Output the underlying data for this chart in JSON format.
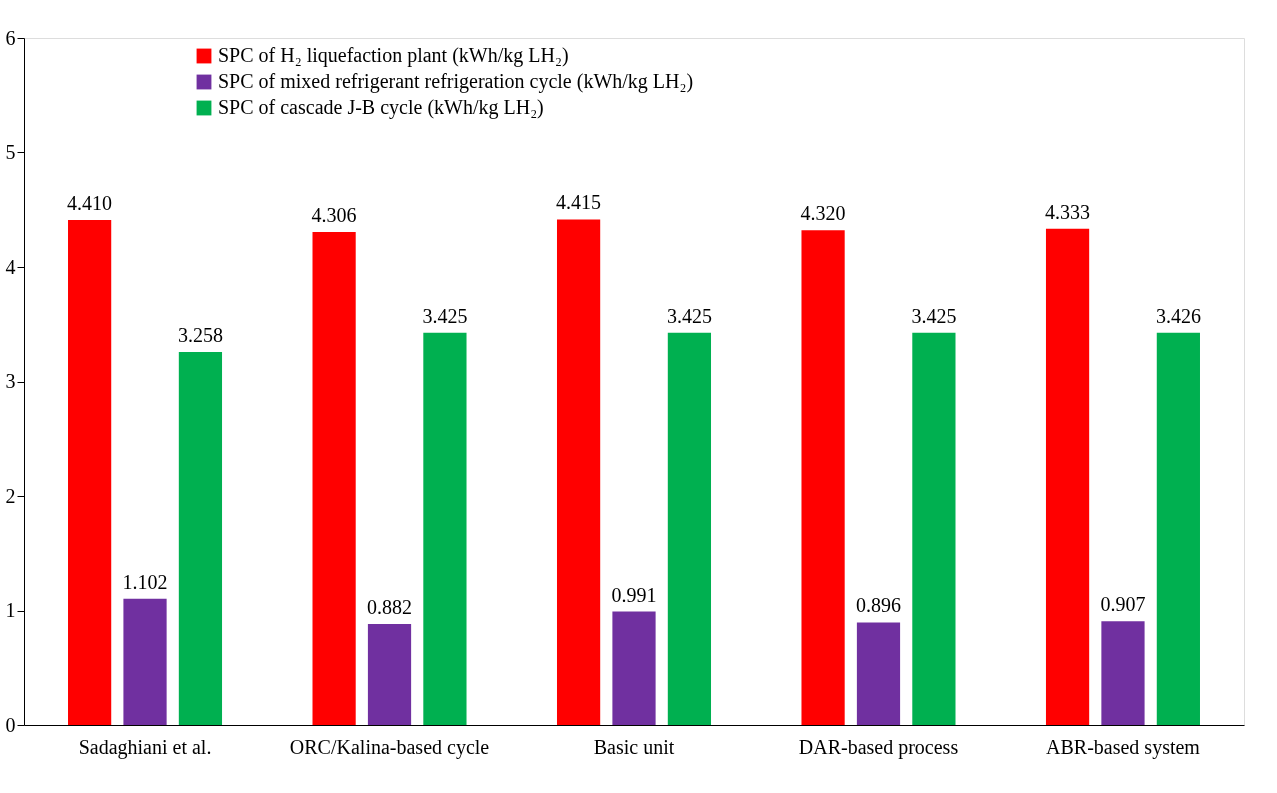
{
  "chart_data": {
    "type": "bar",
    "categories": [
      "Sadaghiani et al.",
      "ORC/Kalina-based cycle",
      "Basic unit",
      "DAR-based process",
      "ABR-based system"
    ],
    "series": [
      {
        "name": "SPC of H₂ liquefaction plant (kWh/kg LH₂)",
        "color": "#ff0000",
        "values": [
          4.41,
          4.306,
          4.415,
          4.32,
          4.333
        ],
        "value_labels": [
          "4.410",
          "4.306",
          "4.415",
          "4.320",
          "4.333"
        ]
      },
      {
        "name": "SPC of mixed refrigerant refrigeration cycle (kWh/kg LH₂)",
        "color": "#7030a0",
        "values": [
          1.102,
          0.882,
          0.991,
          0.896,
          0.907
        ],
        "value_labels": [
          "1.102",
          "0.882",
          "0.991",
          "0.896",
          "0.907"
        ]
      },
      {
        "name": "SPC of cascade J-B cycle (kWh/kg LH₂)",
        "color": "#00b050",
        "values": [
          3.258,
          3.425,
          3.425,
          3.425,
          3.426
        ],
        "value_labels": [
          "3.258",
          "3.425",
          "3.425",
          "3.425",
          "3.426"
        ]
      }
    ],
    "ylim": [
      0,
      6
    ],
    "yticks": [
      0,
      1,
      2,
      3,
      4,
      5,
      6
    ],
    "grid": false,
    "legend": "top"
  }
}
